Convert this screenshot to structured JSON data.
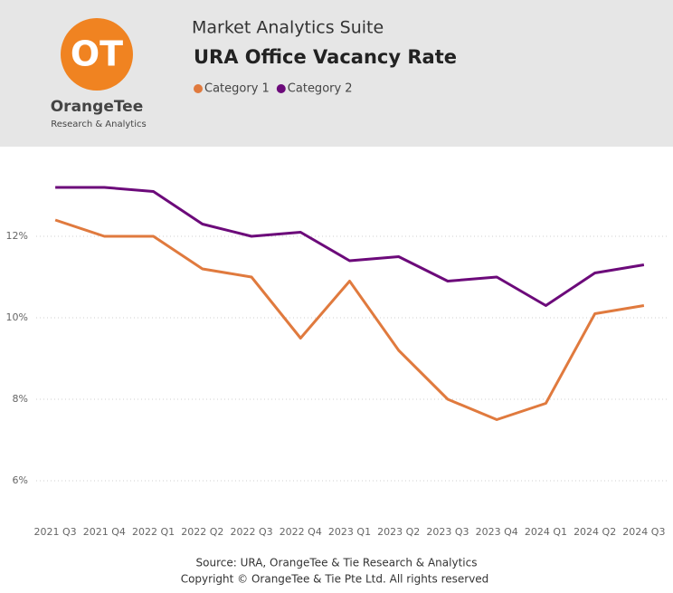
{
  "header": {
    "app_name": "Market Analytics Suite",
    "logo_mark": "OT",
    "logo_name": "OrangeTee",
    "logo_tagline": "Research & Analytics"
  },
  "chart_data": {
    "type": "line",
    "title": "URA Office Vacancy Rate",
    "categories": [
      "2021 Q3",
      "2021 Q4",
      "2022 Q1",
      "2022 Q2",
      "2022 Q3",
      "2022 Q4",
      "2023 Q1",
      "2023 Q2",
      "2023 Q3",
      "2023 Q4",
      "2024 Q1",
      "2024 Q2",
      "2024 Q3"
    ],
    "series": [
      {
        "name": "Category 1",
        "color": "#e07a3e",
        "values": [
          12.4,
          12.0,
          12.0,
          11.2,
          11.0,
          9.5,
          10.9,
          9.2,
          8.0,
          7.5,
          7.9,
          10.1,
          10.3
        ]
      },
      {
        "name": "Category 2",
        "color": "#6c0a7a",
        "values": [
          13.2,
          13.2,
          13.1,
          12.3,
          12.0,
          12.1,
          11.4,
          11.5,
          10.9,
          11.0,
          10.3,
          11.1,
          11.3
        ]
      }
    ],
    "ylim": [
      5.4,
      13.4
    ],
    "yticks": [
      {
        "value": 6,
        "label": "6%"
      },
      {
        "value": 8,
        "label": "8%"
      },
      {
        "value": 10,
        "label": "10%"
      },
      {
        "value": 12,
        "label": "12%"
      }
    ],
    "grid": true,
    "legend": "top"
  },
  "footer": {
    "source": "Source: URA, OrangeTee & Tie Research & Analytics",
    "copyright": "Copyright © OrangeTee & Tie Pte Ltd. All rights reserved"
  }
}
